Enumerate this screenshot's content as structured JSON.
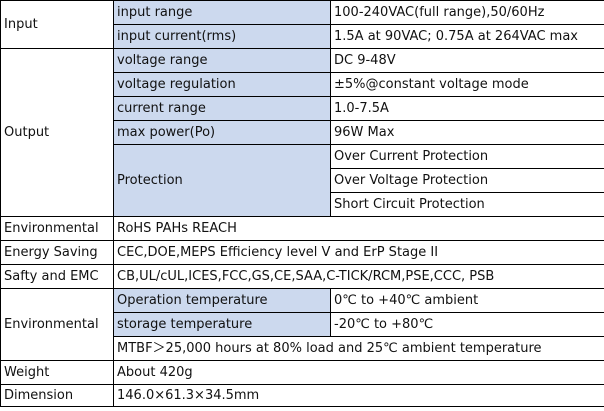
{
  "rows": {
    "input": {
      "category": "Input",
      "range_label": "input range",
      "range_value": "100-240VAC(full range),50/60Hz",
      "current_label": "input current(rms)",
      "current_value": "1.5A at 90VAC; 0.75A at 264VAC max"
    },
    "output": {
      "category": "Output",
      "voltage_range_label": "voltage range",
      "voltage_range_value": "DC 9-48V",
      "regulation_label": "voltage regulation",
      "regulation_value": "±5%@constant voltage mode",
      "current_range_label": "current range",
      "current_range_value": "1.0-7.5A",
      "max_power_label": "max power(Po)",
      "max_power_value": "96W Max",
      "protection_label": "Protection",
      "protection_items": [
        "Over Current Protection",
        "Over Voltage Protection",
        "Short Circuit Protection"
      ]
    },
    "environmental_1": {
      "category": "Environmental",
      "value": "RoHS PAHs REACH"
    },
    "energy_saving": {
      "category": "Energy Saving",
      "value": "CEC,DOE,MEPS Efficiency level V and ErP Stage II"
    },
    "safety_emc": {
      "category": "Safty and EMC",
      "value": "CB,UL/cUL,ICES,FCC,GS,CE,SAA,C-TICK/RCM,PSE,CCC, PSB"
    },
    "environmental_2": {
      "category": "Environmental",
      "operation_label": "Operation temperature",
      "operation_value": "0℃ to +40℃ ambient",
      "storage_label": "storage temperature",
      "storage_value": "-20℃ to +80℃",
      "mtbf_value": "MTBF＞25,000 hours at 80% load and 25℃ ambient temperature"
    },
    "weight": {
      "category": "Weight",
      "value": "About 420g"
    },
    "dimension": {
      "category": "Dimension",
      "value": "146.0×61.3×34.5mm"
    }
  },
  "colors": {
    "label_fill": "#ccd9ee",
    "border": "#000000"
  }
}
